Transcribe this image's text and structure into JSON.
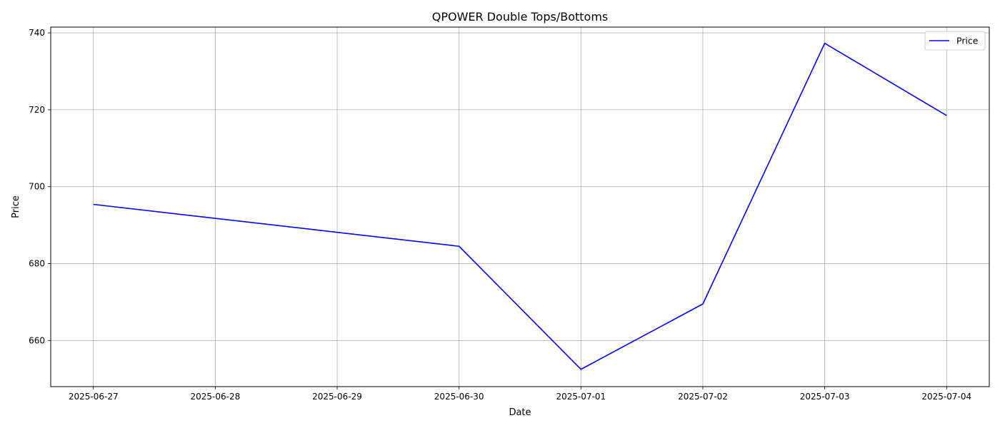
{
  "chart_data": {
    "type": "line",
    "title": "QPOWER Double Tops/Bottoms",
    "xlabel": "Date",
    "ylabel": "Price",
    "x": [
      "2025-06-27",
      "2025-06-30",
      "2025-07-01",
      "2025-07-02",
      "2025-07-03",
      "2025-07-04"
    ],
    "x_ticks": [
      "2025-06-27",
      "2025-06-28",
      "2025-06-29",
      "2025-06-30",
      "2025-07-01",
      "2025-07-02",
      "2025-07-03",
      "2025-07-04"
    ],
    "y_ticks": [
      660,
      680,
      700,
      720,
      740
    ],
    "ylim": [
      648,
      741.5
    ],
    "xlim": [
      "2025-06-26.65",
      "2025-07-04.35"
    ],
    "grid": true,
    "legend_position": "top-right",
    "series": [
      {
        "name": "Price",
        "color": "#0000ff",
        "values": [
          695.4,
          684.5,
          652.5,
          669.5,
          737.3,
          718.5
        ]
      }
    ]
  }
}
